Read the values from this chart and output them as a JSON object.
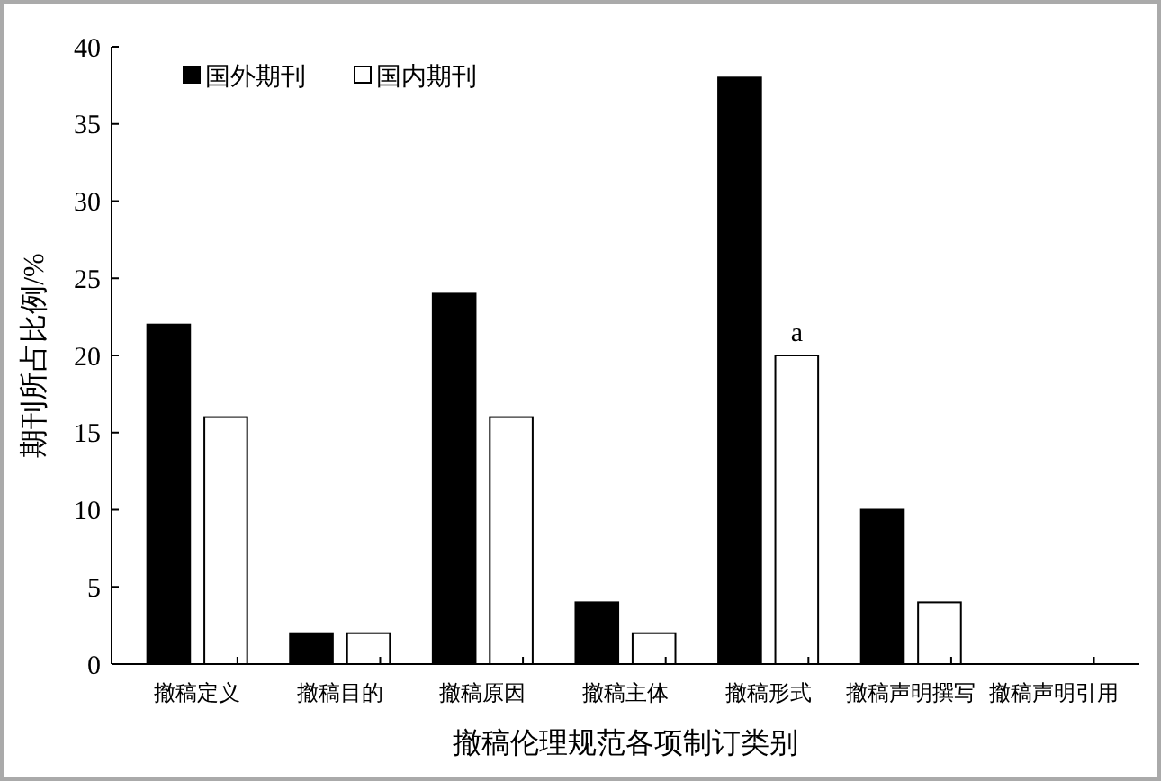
{
  "chart_data": {
    "type": "bar",
    "xlabel": "撤稿伦理规范各项制订类别",
    "ylabel": "期刊所占比例/%",
    "categories": [
      "撤稿定义",
      "撤稿目的",
      "撤稿原因",
      "撤稿主体",
      "撤稿形式",
      "撤稿声明撰写",
      "撤稿声明引用"
    ],
    "series": [
      {
        "name": "国外期刊",
        "color": "#000000",
        "values": [
          22,
          2,
          24,
          4,
          38,
          10,
          0
        ]
      },
      {
        "name": "国内期刊",
        "color": "#ffffff",
        "values": [
          16,
          2,
          16,
          2,
          20,
          4,
          0
        ]
      }
    ],
    "ylim": [
      0,
      40
    ],
    "yticks": [
      0,
      5,
      10,
      15,
      20,
      25,
      30,
      35,
      40
    ],
    "grid": false,
    "legend": "top left",
    "annotations": [
      {
        "text": "a",
        "x": "撤稿形式",
        "y": 20
      }
    ]
  }
}
